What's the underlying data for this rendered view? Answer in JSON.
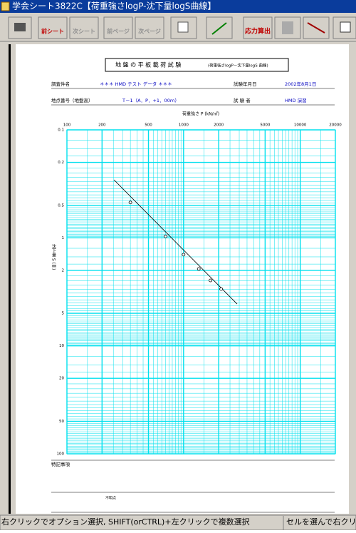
{
  "window": {
    "title": "学会シート3822C【荷重強さlogP-沈下量logS曲線】",
    "status_left": "右クリックでオプション選択, SHIFT(orCTRL)+左クリックで複数選択",
    "status_right": "セルを選んで右クリック"
  },
  "toolbar": [
    "前シート",
    "次シート",
    "前ページ",
    "次ページ",
    "応力算出"
  ],
  "sheet": {
    "title": "地 盤 の 平 板 載 荷 試 験",
    "subtitle": "(荷重強さlogP－沈下量logS 曲線)",
    "fields": [
      {
        "label": "調査件名",
        "value": "＊＊＊ HMD テスト データ ＊＊＊"
      },
      {
        "label": "試験年月日",
        "value": "2002年8月1日"
      },
      {
        "label": "地点番号（地盤高）",
        "value": "T－1（A．P．+1．00ｍ）"
      },
      {
        "label": "試 験 者",
        "value": "HMD 演習"
      }
    ],
    "remarks_label": "特記事項",
    "footnote": "不明点"
  },
  "chart_data": {
    "type": "scatter",
    "x_label": "荷重強さ P (kN/㎡)",
    "y_label": "沈下量 S (㎜)",
    "x": [
      350,
      700,
      1000,
      1350,
      1700,
      2100
    ],
    "values": [
      0.47,
      0.97,
      1.43,
      1.94,
      2.48,
      2.98
    ],
    "fit_x": [
      253,
      2877
    ],
    "fit_values": [
      0.29,
      4.1
    ],
    "xlim": [
      100,
      20000
    ],
    "ylim": [
      0.1,
      100
    ],
    "xticks": [
      100,
      200,
      500,
      1000,
      2000,
      5000,
      10000,
      20000
    ],
    "yticks": [
      0.1,
      0.2,
      0.5,
      1,
      2,
      5,
      10,
      20,
      50,
      100
    ],
    "xlog": true,
    "ylog": true,
    "y_inverted": true,
    "grid": true,
    "grid_color": "#00e0ee",
    "color": "#000000"
  }
}
